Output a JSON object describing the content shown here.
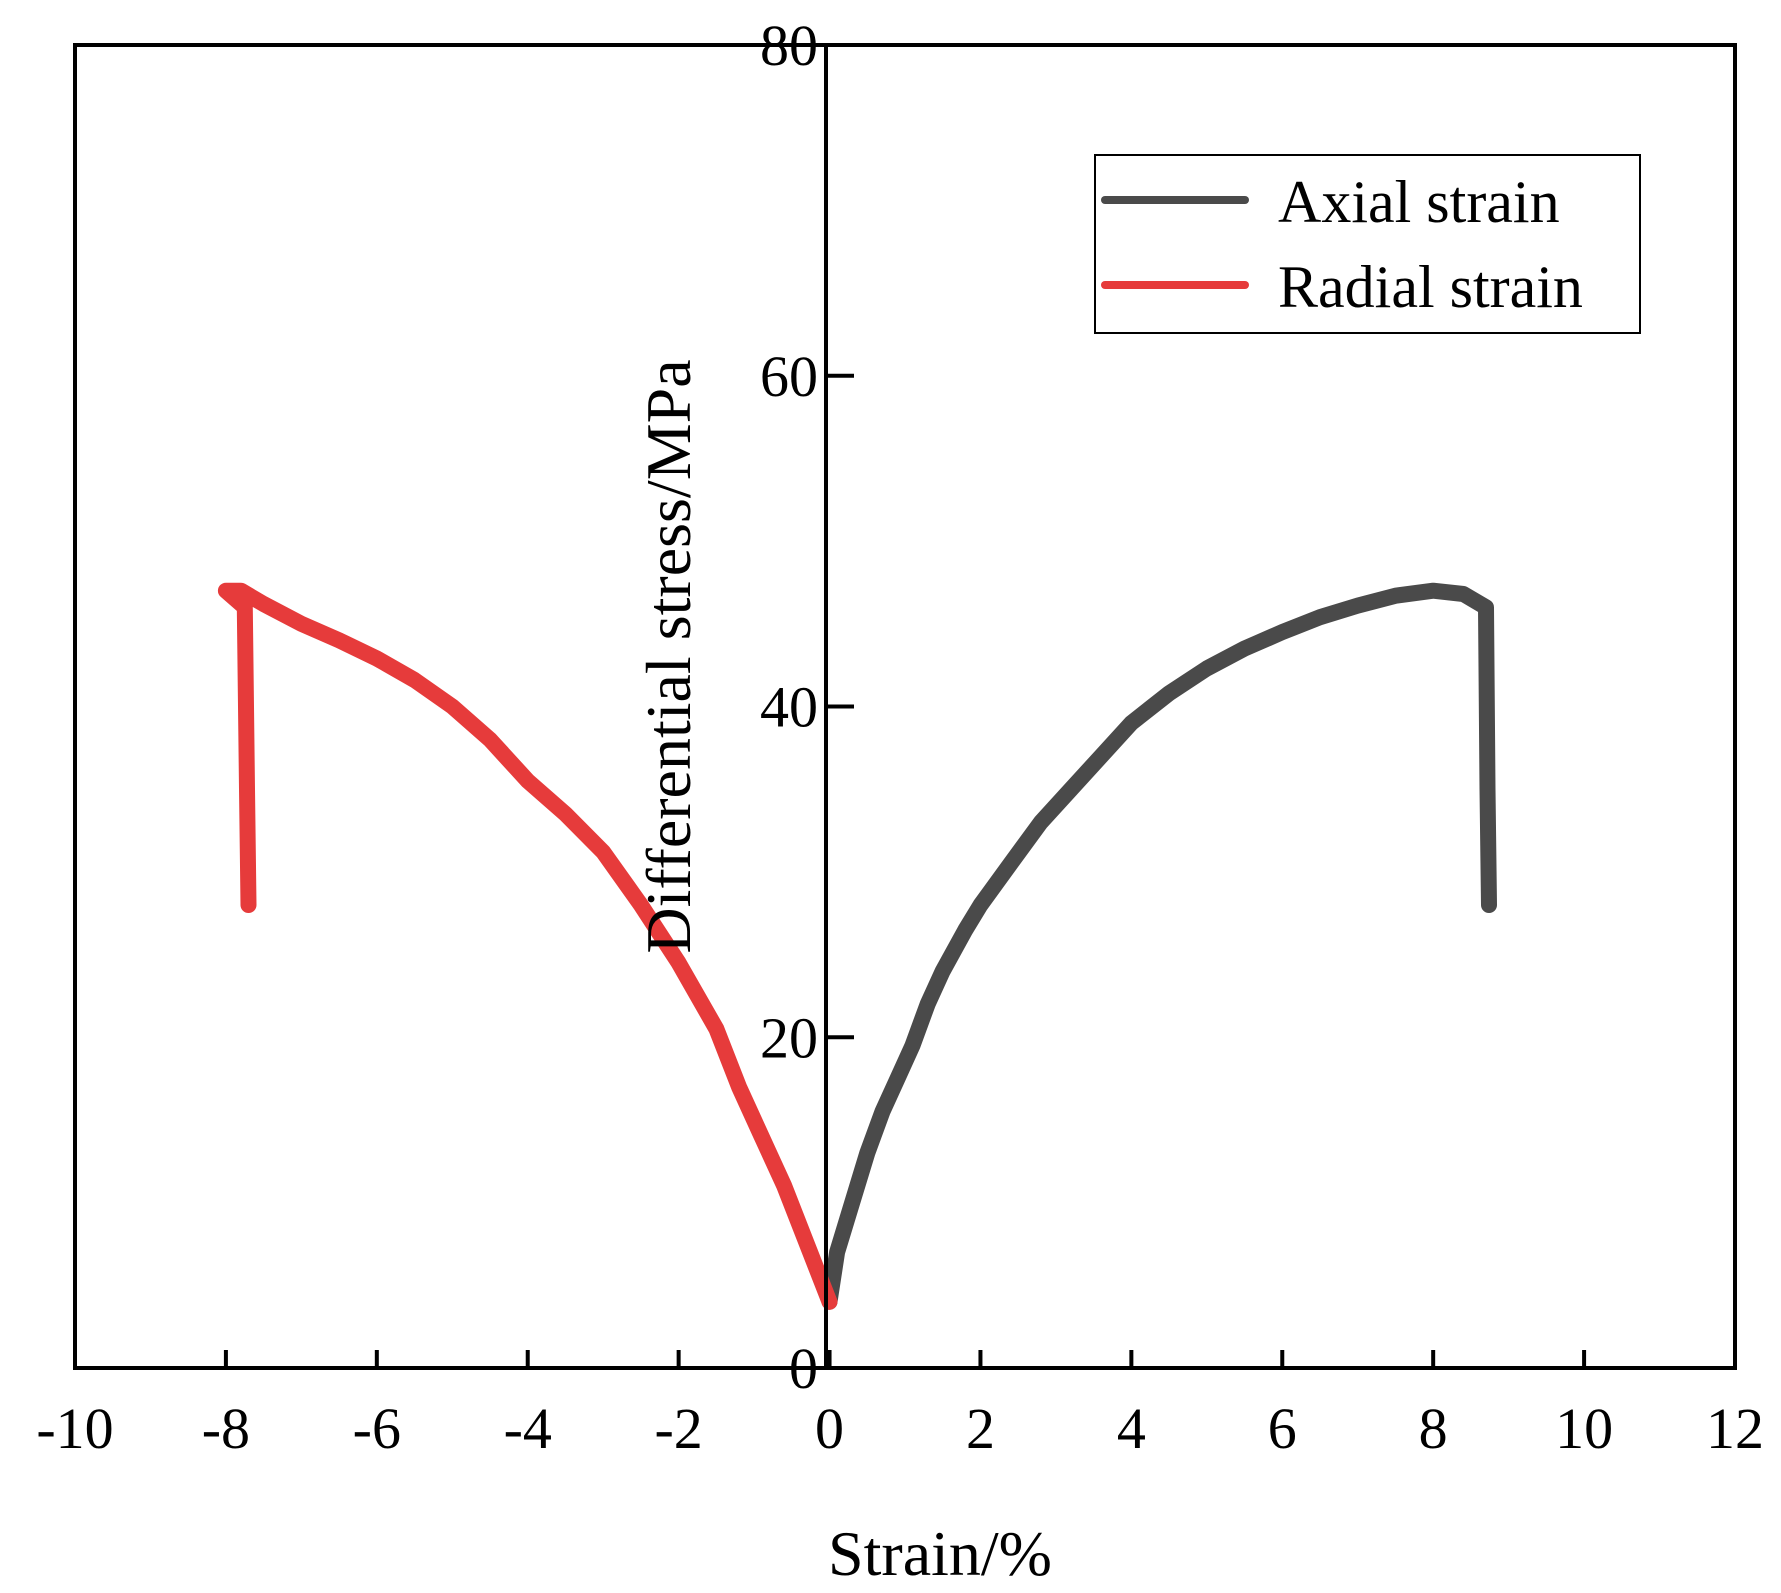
{
  "chart_data": {
    "type": "line",
    "title": "",
    "xlabel": "Strain/%",
    "ylabel": "Differential stress/MPa",
    "xlim": [
      -10,
      12
    ],
    "ylim": [
      0,
      80
    ],
    "xticks": [
      -10,
      -8,
      -6,
      -4,
      -2,
      0,
      2,
      4,
      6,
      8,
      10,
      12
    ],
    "xtick_labels": [
      "-10",
      "-8",
      "-6",
      "-4",
      "-2",
      "0",
      "2",
      "4",
      "6",
      "8",
      "10",
      "12"
    ],
    "yticks": [
      0,
      20,
      40,
      60,
      80
    ],
    "ytick_labels": [
      "0",
      "20",
      "40",
      "60",
      "80"
    ],
    "grid": false,
    "legend_position": "top-right",
    "series": [
      {
        "name": "Axial strain",
        "color": "#4a4a4a",
        "points": [
          [
            0.0,
            4
          ],
          [
            0.1,
            7
          ],
          [
            0.3,
            10
          ],
          [
            0.5,
            13
          ],
          [
            0.7,
            15.5
          ],
          [
            0.9,
            17.5
          ],
          [
            1.1,
            19.5
          ],
          [
            1.3,
            22
          ],
          [
            1.5,
            24
          ],
          [
            1.8,
            26.5
          ],
          [
            2.0,
            28
          ],
          [
            2.4,
            30.5
          ],
          [
            2.8,
            33
          ],
          [
            3.2,
            35
          ],
          [
            3.6,
            37
          ],
          [
            4.0,
            39
          ],
          [
            4.5,
            40.8
          ],
          [
            5.0,
            42.3
          ],
          [
            5.5,
            43.5
          ],
          [
            6.0,
            44.5
          ],
          [
            6.5,
            45.4
          ],
          [
            7.0,
            46.1
          ],
          [
            7.5,
            46.7
          ],
          [
            8.0,
            47.0
          ],
          [
            8.4,
            46.8
          ],
          [
            8.7,
            46.0
          ],
          [
            8.72,
            35
          ],
          [
            8.74,
            28
          ]
        ]
      },
      {
        "name": "Radial strain",
        "color": "#e63b3b",
        "points": [
          [
            0.0,
            4
          ],
          [
            -0.3,
            7.5
          ],
          [
            -0.6,
            11
          ],
          [
            -0.9,
            14
          ],
          [
            -1.2,
            17
          ],
          [
            -1.5,
            20.5
          ],
          [
            -2.0,
            24.5
          ],
          [
            -2.5,
            28
          ],
          [
            -3.0,
            31.2
          ],
          [
            -3.5,
            33.5
          ],
          [
            -4.0,
            35.5
          ],
          [
            -4.5,
            38
          ],
          [
            -5.0,
            40
          ],
          [
            -5.5,
            41.6
          ],
          [
            -6.0,
            42.9
          ],
          [
            -6.5,
            44.0
          ],
          [
            -7.0,
            45.0
          ],
          [
            -7.5,
            46.2
          ],
          [
            -7.8,
            47.0
          ],
          [
            -8.0,
            47.0
          ],
          [
            -7.75,
            46.0
          ],
          [
            -7.72,
            35
          ],
          [
            -7.7,
            28
          ]
        ]
      }
    ]
  }
}
